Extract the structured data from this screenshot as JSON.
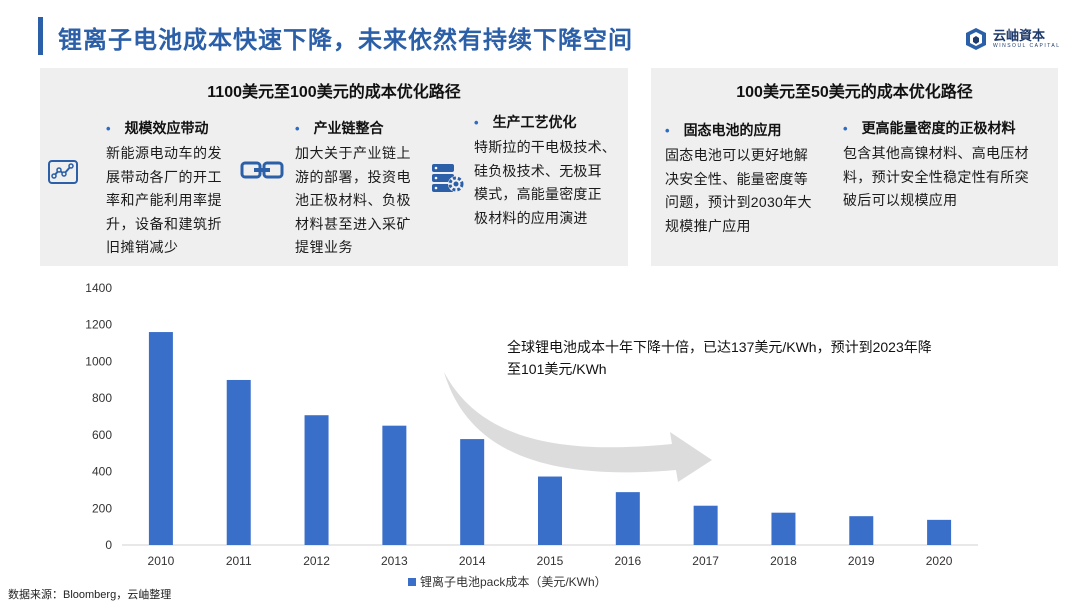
{
  "header": {
    "title": "锂离子电池成本快速下降，未来依然有持续下降空间",
    "logo_cn": "云岫資本",
    "logo_en": "WINSOUL CAPITAL"
  },
  "panel_left": {
    "title": "1100美元至100美元的成本优化路径",
    "items": [
      {
        "heading": "规模效应带动",
        "icon": "scale-chart-icon",
        "lines": [
          "新能源电动车的发",
          "展带动各厂的开工",
          "率和产能利用率提",
          "升，设备和建筑折",
          "旧摊销减少"
        ]
      },
      {
        "heading": "产业链整合",
        "icon": "chain-link-icon",
        "lines": [
          "加大关于产业链上",
          "游的部署，投资电",
          "池正极材料、负极",
          "材料甚至进入采矿",
          "提锂业务"
        ]
      },
      {
        "heading": "生产工艺优化",
        "icon": "server-gear-icon",
        "lines": [
          "特斯拉的干电极技术、",
          "硅负极技术、无极耳",
          "模式，高能量密度正",
          "极材料的应用演进"
        ]
      }
    ]
  },
  "panel_right": {
    "title": "100美元至50美元的成本优化路径",
    "items": [
      {
        "heading": "固态电池的应用",
        "lines": [
          "固态电池可以更好地解",
          "决安全性、能量密度等",
          "问题，预计到2030年大",
          "规模推广应用"
        ]
      },
      {
        "heading": "更高能量密度的正极材料",
        "lines": [
          "包含其他高镍材料、高电压材",
          "料，预计安全性稳定性有所突",
          "破后可以规模应用"
        ]
      }
    ]
  },
  "annotation": {
    "line1": "全球锂电池成本十年下降十倍，已达137美元/KWh，预计到2023年降",
    "line2": "至101美元/KWh"
  },
  "source": "数据来源：Bloomberg，云岫整理",
  "colors": {
    "accent": "#2b5fa8",
    "bar": "#3a6fc9",
    "arrow": "#d9d9d9"
  },
  "chart_data": {
    "type": "bar",
    "categories": [
      "2010",
      "2011",
      "2012",
      "2013",
      "2014",
      "2015",
      "2016",
      "2017",
      "2018",
      "2019",
      "2020"
    ],
    "series": [
      {
        "name": "锂离子电池pack成本（美元/KWh）",
        "values": [
          1160,
          899,
          707,
          650,
          577,
          373,
          288,
          214,
          176,
          157,
          137
        ]
      }
    ],
    "yticks": [
      "0",
      "200",
      "400",
      "600",
      "800",
      "1000",
      "1200",
      "1400"
    ],
    "ylim": [
      0,
      1400
    ],
    "legend": "bottom",
    "grid": false
  }
}
